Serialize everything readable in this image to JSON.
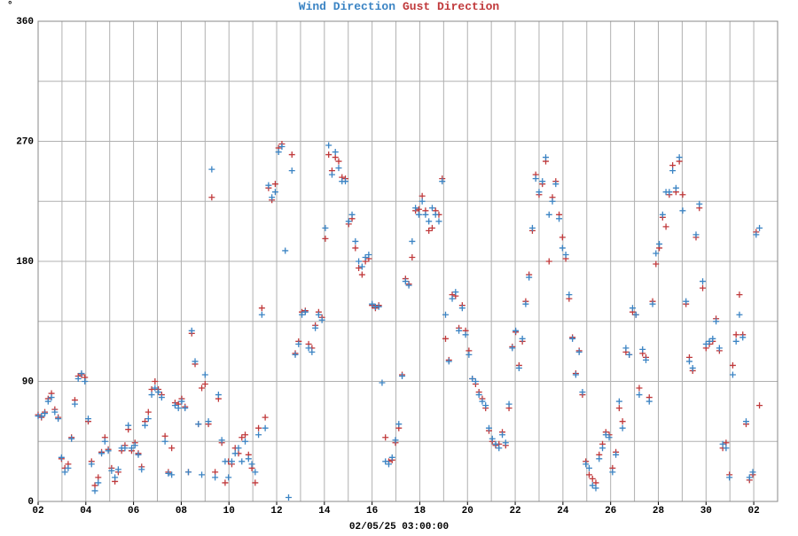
{
  "chart_data": {
    "type": "scatter",
    "ylabel": "°",
    "xlabel": "02/05/25 03:00:00",
    "xlim": [
      0,
      31
    ],
    "ylim": [
      0,
      360
    ],
    "xticks": [
      {
        "value": 0,
        "label": "02"
      },
      {
        "value": 2,
        "label": "04"
      },
      {
        "value": 4,
        "label": "06"
      },
      {
        "value": 6,
        "label": "08"
      },
      {
        "value": 8,
        "label": "10"
      },
      {
        "value": 10,
        "label": "12"
      },
      {
        "value": 12,
        "label": "14"
      },
      {
        "value": 14,
        "label": "16"
      },
      {
        "value": 16,
        "label": "18"
      },
      {
        "value": 18,
        "label": "20"
      },
      {
        "value": 20,
        "label": "22"
      },
      {
        "value": 22,
        "label": "24"
      },
      {
        "value": 24,
        "label": "26"
      },
      {
        "value": 26,
        "label": "28"
      },
      {
        "value": 28,
        "label": "30"
      },
      {
        "value": 30,
        "label": "02"
      }
    ],
    "xminor": [
      1,
      3,
      5,
      7,
      9,
      11,
      13,
      15,
      17,
      19,
      21,
      23,
      25,
      27,
      29
    ],
    "yticks": [
      0,
      90,
      180,
      270,
      360
    ],
    "yminor": [
      45,
      135,
      225,
      315
    ],
    "grid": true,
    "x": [
      0,
      0.14,
      0.28,
      0.42,
      0.56,
      0.7,
      0.84,
      0.98,
      1.12,
      1.26,
      1.4,
      1.54,
      1.68,
      1.82,
      1.96,
      2.1,
      2.24,
      2.38,
      2.52,
      2.66,
      2.8,
      2.94,
      3.08,
      3.22,
      3.36,
      3.5,
      3.64,
      3.78,
      3.92,
      4.06,
      4.2,
      4.34,
      4.48,
      4.62,
      4.76,
      4.9,
      5.04,
      5.18,
      5.32,
      5.46,
      5.6,
      5.74,
      5.88,
      6.02,
      6.16,
      6.3,
      6.44,
      6.58,
      6.72,
      6.86,
      7,
      7.14,
      7.28,
      7.42,
      7.56,
      7.7,
      7.84,
      7.98,
      8.12,
      8.26,
      8.4,
      8.54,
      8.68,
      8.82,
      8.96,
      9.1,
      9.24,
      9.38,
      9.52,
      9.66,
      9.8,
      9.94,
      10.08,
      10.22,
      10.36,
      10.5,
      10.64,
      10.78,
      10.92,
      11.06,
      11.2,
      11.34,
      11.48,
      11.62,
      11.76,
      11.9,
      12.04,
      12.18,
      12.32,
      12.46,
      12.6,
      12.74,
      12.88,
      13.02,
      13.16,
      13.3,
      13.44,
      13.58,
      13.72,
      13.86,
      14,
      14.14,
      14.28,
      14.42,
      14.56,
      14.7,
      14.84,
      14.98,
      15.12,
      15.26,
      15.4,
      15.54,
      15.68,
      15.82,
      15.96,
      16.1,
      16.24,
      16.38,
      16.52,
      16.66,
      16.8,
      16.94,
      17.08,
      17.22,
      17.36,
      17.5,
      17.64,
      17.78,
      17.92,
      18.06,
      18.2,
      18.34,
      18.48,
      18.62,
      18.76,
      18.9,
      19.04,
      19.18,
      19.32,
      19.46,
      19.6,
      19.74,
      19.88,
      20.02,
      20.16,
      20.3,
      20.44,
      20.58,
      20.72,
      20.86,
      21,
      21.14,
      21.28,
      21.42,
      21.56,
      21.7,
      21.84,
      21.98,
      22.12,
      22.26,
      22.4,
      22.54,
      22.68,
      22.82,
      22.96,
      23.1,
      23.24,
      23.38,
      23.52,
      23.66,
      23.8,
      23.94,
      24.08,
      24.22,
      24.36,
      24.5,
      24.64,
      24.78,
      24.92,
      25.06,
      25.2,
      25.34,
      25.48,
      25.62,
      25.76,
      25.9,
      26.04,
      26.18,
      26.32,
      26.46,
      26.6,
      26.74,
      26.88,
      27.02,
      27.16,
      27.3,
      27.44,
      27.58,
      27.72,
      27.86,
      28,
      28.14,
      28.28,
      28.42,
      28.56,
      28.7,
      28.84,
      28.98,
      29.12,
      29.26,
      29.4,
      29.54,
      29.68,
      29.82,
      29.96,
      30.1,
      30.24
    ],
    "series": [
      {
        "name": "Gust Direction",
        "color": "#c0393b",
        "values": [
          65,
          63,
          67,
          77,
          81,
          69,
          63,
          32,
          25,
          28,
          48,
          76,
          94,
          95,
          93,
          60,
          30,
          12,
          18,
          37,
          48,
          39,
          25,
          15,
          22,
          38,
          42,
          54,
          38,
          44,
          36,
          26,
          60,
          67,
          84,
          90,
          84,
          80,
          49,
          22,
          40,
          74,
          73,
          77,
          71,
          22,
          126,
          103,
          58,
          85,
          88,
          58,
          228,
          22,
          77,
          44,
          14,
          30,
          28,
          40,
          36,
          48,
          50,
          35,
          25,
          14,
          55,
          145,
          63,
          235,
          226,
          238,
          265,
          268,
          null,
          null,
          260,
          111,
          120,
          142,
          143,
          118,
          115,
          132,
          142,
          138,
          197,
          260,
          248,
          258,
          255,
          243,
          242,
          208,
          212,
          190,
          175,
          170,
          180,
          182,
          147,
          145,
          147,
          null,
          48,
          30,
          31,
          44,
          55,
          95,
          167,
          163,
          183,
          218,
          219,
          229,
          218,
          203,
          205,
          218,
          215,
          242,
          122,
          106,
          155,
          154,
          130,
          147,
          128,
          113,
          92,
          88,
          82,
          77,
          70,
          53,
          45,
          42,
          43,
          52,
          42,
          70,
          116,
          127,
          102,
          120,
          150,
          170,
          203,
          245,
          230,
          238,
          255,
          180,
          228,
          240,
          215,
          198,
          182,
          152,
          123,
          96,
          113,
          80,
          30,
          20,
          17,
          14,
          35,
          43,
          52,
          50,
          25,
          37,
          70,
          60,
          112,
          110,
          142,
          140,
          85,
          111,
          108,
          78,
          150,
          178,
          190,
          213,
          206,
          230,
          252,
          232,
          255,
          230,
          148,
          108,
          98,
          198,
          220,
          160,
          115,
          118,
          120,
          137,
          113,
          40,
          44,
          20,
          102,
          125,
          155,
          125,
          58,
          16,
          20,
          202,
          72
        ]
      },
      {
        "name": "Wind Direction",
        "color": "#3b84c4",
        "values": [
          64,
          64,
          66,
          75,
          78,
          67,
          62,
          33,
          22,
          25,
          47,
          73,
          92,
          96,
          90,
          62,
          28,
          8,
          14,
          36,
          45,
          38,
          23,
          18,
          24,
          40,
          40,
          57,
          40,
          42,
          35,
          24,
          57,
          62,
          80,
          85,
          82,
          78,
          45,
          21,
          20,
          72,
          70,
          75,
          70,
          22,
          128,
          105,
          58,
          20,
          95,
          60,
          249,
          18,
          80,
          46,
          30,
          18,
          30,
          36,
          40,
          30,
          45,
          32,
          28,
          22,
          50,
          140,
          55,
          237,
          228,
          232,
          262,
          266,
          188,
          3,
          248,
          110,
          118,
          140,
          142,
          115,
          112,
          130,
          140,
          136,
          205,
          267,
          245,
          262,
          250,
          240,
          240,
          210,
          215,
          195,
          180,
          176,
          183,
          185,
          148,
          146,
          146,
          89,
          30,
          28,
          33,
          46,
          58,
          94,
          165,
          162,
          195,
          220,
          215,
          225,
          215,
          210,
          220,
          215,
          210,
          240,
          140,
          105,
          152,
          157,
          128,
          145,
          125,
          110,
          92,
          90,
          80,
          75,
          72,
          55,
          47,
          43,
          40,
          50,
          44,
          73,
          115,
          128,
          100,
          122,
          148,
          168,
          205,
          242,
          232,
          240,
          258,
          215,
          225,
          238,
          212,
          190,
          185,
          155,
          122,
          95,
          112,
          82,
          28,
          25,
          12,
          10,
          32,
          40,
          50,
          48,
          22,
          35,
          75,
          55,
          115,
          110,
          145,
          140,
          80,
          114,
          106,
          75,
          148,
          186,
          193,
          215,
          232,
          232,
          248,
          235,
          258,
          218,
          150,
          105,
          100,
          200,
          223,
          165,
          118,
          120,
          122,
          135,
          115,
          43,
          40,
          18,
          95,
          120,
          140,
          123,
          60,
          18,
          22,
          200,
          205
        ]
      }
    ]
  }
}
